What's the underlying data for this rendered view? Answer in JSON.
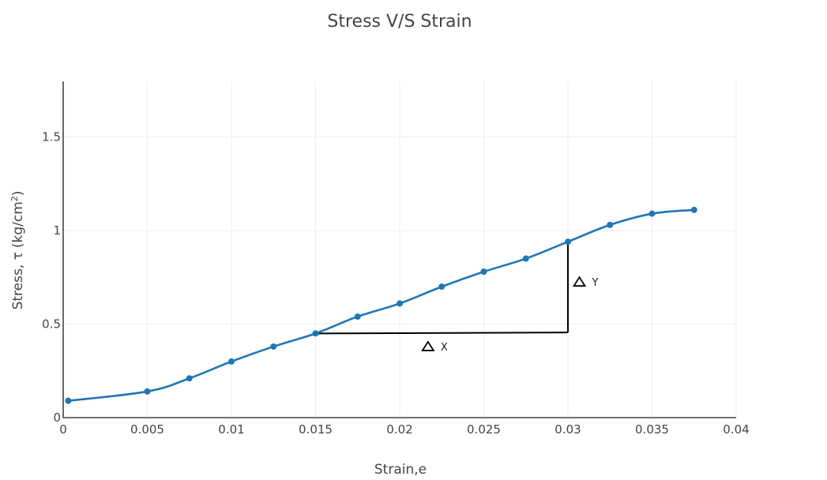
{
  "chart_data": {
    "type": "line",
    "title": "Stress V/S Strain",
    "xlabel": "Strain,e",
    "ylabel": "Stress, ",
    "ylabel_symbol": "τ",
    "ylabel_unit_prefix": "(kg/cm",
    "ylabel_unit_exp": "2",
    "ylabel_unit_suffix": ")",
    "xlim": [
      0,
      0.04
    ],
    "ylim": [
      0,
      1.8
    ],
    "xticks": [
      0,
      0.005,
      0.01,
      0.015,
      0.02,
      0.025,
      0.03,
      0.035,
      0.04
    ],
    "xtick_labels": [
      "0",
      "0.005",
      "0.01",
      "0.015",
      "0.02",
      "0.025",
      "0.03",
      "0.035",
      "0.04"
    ],
    "yticks": [
      0,
      0.5,
      1,
      1.5
    ],
    "ytick_labels": [
      "0",
      "0.5",
      "1",
      "1.5"
    ],
    "grid": true,
    "series": [
      {
        "color": "#1f77b4",
        "x": [
          0.0003,
          0.005,
          0.0075,
          0.01,
          0.0125,
          0.015,
          0.0175,
          0.02,
          0.0225,
          0.025,
          0.0275,
          0.03,
          0.0325,
          0.035,
          0.0375
        ],
        "y": [
          0.09,
          0.14,
          0.21,
          0.3,
          0.38,
          0.45,
          0.54,
          0.61,
          0.7,
          0.78,
          0.85,
          0.94,
          1.03,
          1.09,
          1.11
        ]
      }
    ],
    "annotations": {
      "delta_x": {
        "label": "X",
        "line": {
          "x0": 0.015,
          "y0": 0.45,
          "x1": 0.03,
          "y1": 0.455
        },
        "label_at": {
          "x": 0.0222,
          "y": 0.38
        }
      },
      "delta_y": {
        "label": "Y",
        "line": {
          "x0": 0.03,
          "y0": 0.455,
          "x1": 0.03,
          "y1": 0.94
        },
        "label_at": {
          "x": 0.0312,
          "y": 0.725
        }
      },
      "line_color": "#000000",
      "triangle_symbol": "delta-triangle-icon"
    }
  }
}
